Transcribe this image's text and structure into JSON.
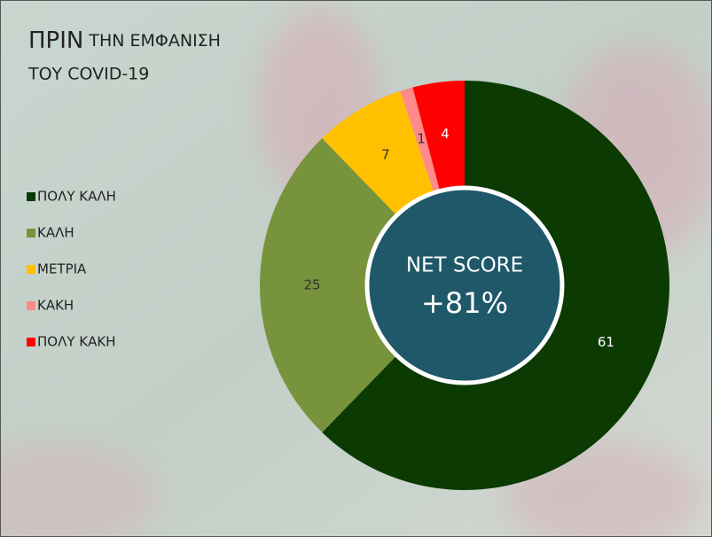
{
  "chart_data": {
    "type": "donut",
    "title_parts": [
      "ΠΡΙΝ",
      "ΤΗΝ ΕΜΦΑΝΙΣΗ",
      "ΤΟΥ COVID-19"
    ],
    "categories": [
      "ΠΟΛΥ ΚΑΛΗ",
      "ΚΑΛΗ",
      "ΜΕΤΡΙΑ",
      "ΚΑΚΗ",
      "ΠΟΛΥ ΚΑΚΗ"
    ],
    "values": [
      61,
      25,
      7,
      1,
      4
    ],
    "colors": [
      "#0b3b02",
      "#77933c",
      "#ffc000",
      "#ff8a8a",
      "#ff0000"
    ],
    "center_label": "NET SCORE",
    "center_value": 81,
    "center_value_label": "+81%",
    "center_color": "#1f5868",
    "legend": "left"
  }
}
